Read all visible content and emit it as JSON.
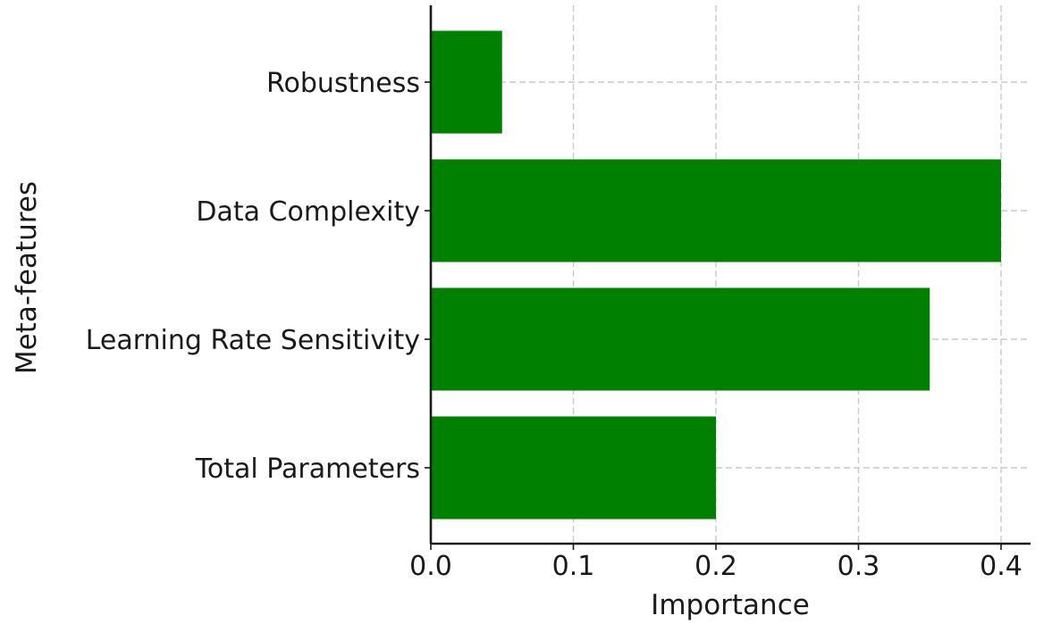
{
  "chart_data": {
    "type": "bar",
    "orientation": "horizontal",
    "categories": [
      "Total Parameters",
      "Learning Rate Sensitivity",
      "Data Complexity",
      "Robustness"
    ],
    "values": [
      0.2,
      0.35,
      0.4,
      0.05
    ],
    "xlabel": "Importance",
    "ylabel": "Meta-features",
    "xlim": [
      0,
      0.42
    ],
    "xticks": [
      "0.0",
      "0.1",
      "0.2",
      "0.3",
      "0.4"
    ],
    "grid": true,
    "colors": {
      "bar": "#008000"
    }
  }
}
